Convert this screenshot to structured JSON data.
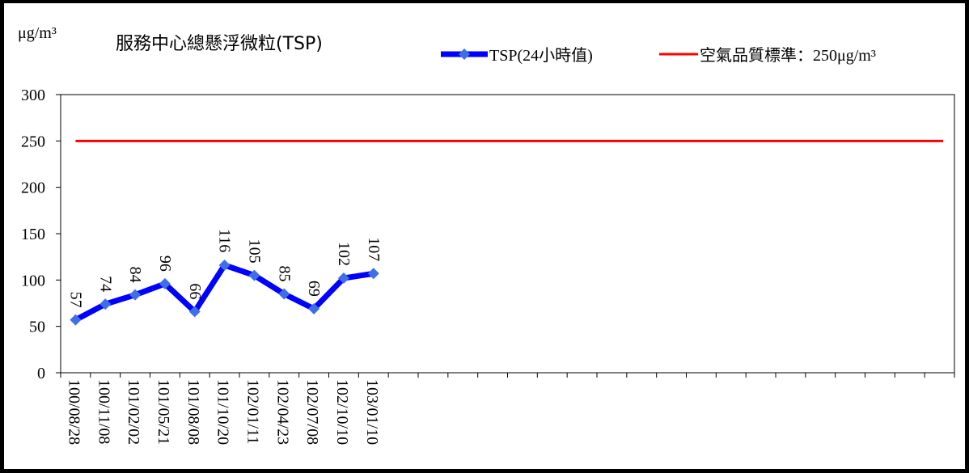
{
  "chart_data": {
    "type": "line",
    "title": "服務中心總懸浮微粒(TSP)",
    "ylabel": "μg/m³",
    "ylim": [
      0,
      300
    ],
    "yticks": [
      0,
      50,
      100,
      150,
      200,
      250,
      300
    ],
    "grid": false,
    "legend_placement": "top-right",
    "categories": [
      "100/08/28",
      "100/11/08",
      "101/02/02",
      "101/05/21",
      "101/08/08",
      "101/10/20",
      "102/01/11",
      "102/04/23",
      "102/07/08",
      "102/10/10",
      "103/01/10"
    ],
    "total_slots": 30,
    "series": [
      {
        "name": "TSP(24小時值)",
        "color": "#0000ff",
        "marker_color": "#3f6fe8",
        "marker": "diamond",
        "values": [
          57,
          74,
          84,
          96,
          66,
          116,
          105,
          85,
          69,
          102,
          107
        ],
        "data_labels": [
          "57",
          "74",
          "84",
          "96",
          "66",
          "116",
          "105",
          "85",
          "69",
          "102",
          "107"
        ]
      },
      {
        "name": "空氣品質標準：250μg/m³",
        "color": "#ff0000",
        "constant": 250
      }
    ]
  }
}
